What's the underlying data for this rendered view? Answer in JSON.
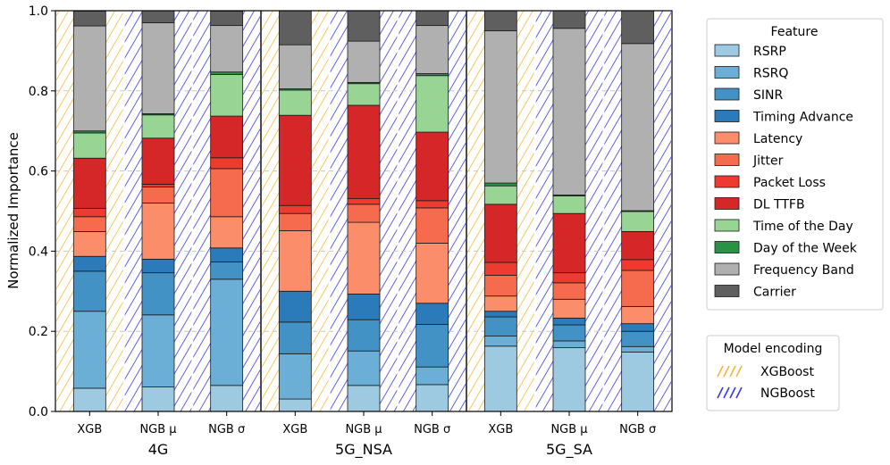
{
  "chart_data": {
    "type": "bar",
    "stacked": true,
    "ylabel": "Normalized Importance",
    "ylim": [
      0,
      1.0
    ],
    "yticks": [
      "0.0",
      "0.2",
      "0.4",
      "0.6",
      "0.8",
      "1.0"
    ],
    "grid": "horizontal dashed",
    "groups": [
      "4G",
      "5G_NSA",
      "5G_SA"
    ],
    "bar_labels": [
      "XGB",
      "NGB μ",
      "NGB σ"
    ],
    "features": [
      {
        "name": "RSRP",
        "color": "#9ecae1"
      },
      {
        "name": "RSRQ",
        "color": "#6baed6"
      },
      {
        "name": "SINR",
        "color": "#4292c6"
      },
      {
        "name": "Timing Advance",
        "color": "#2b7bba"
      },
      {
        "name": "Latency",
        "color": "#fc8d6a"
      },
      {
        "name": "Jitter",
        "color": "#f66a4d"
      },
      {
        "name": "Packet Loss",
        "color": "#ee3b2f"
      },
      {
        "name": "DL TTFB",
        "color": "#d62728"
      },
      {
        "name": "Time of the Day",
        "color": "#98d594"
      },
      {
        "name": "Day of the Week",
        "color": "#2a9245"
      },
      {
        "name": "Frequency Band",
        "color": "#b0b0b0"
      },
      {
        "name": "Carrier",
        "color": "#5f5f5f"
      }
    ],
    "bars": [
      {
        "group": "4G",
        "label": "XGB",
        "encoding": "XGBoost",
        "values": [
          0.058,
          0.192,
          0.1,
          0.037,
          0.062,
          0.037,
          0.021,
          0.125,
          0.063,
          0.005,
          0.262,
          0.037
        ]
      },
      {
        "group": "4G",
        "label": "NGB μ",
        "encoding": "NGBoost",
        "values": [
          0.061,
          0.18,
          0.105,
          0.034,
          0.14,
          0.04,
          0.007,
          0.115,
          0.058,
          0.003,
          0.227,
          0.03
        ]
      },
      {
        "group": "4G",
        "label": "NGB σ",
        "encoding": "NGBoost",
        "values": [
          0.065,
          0.265,
          0.043,
          0.035,
          0.078,
          0.12,
          0.027,
          0.104,
          0.104,
          0.006,
          0.116,
          0.036
        ]
      },
      {
        "group": "5G_NSA",
        "label": "XGB",
        "encoding": "XGBoost",
        "values": [
          0.031,
          0.113,
          0.079,
          0.077,
          0.151,
          0.043,
          0.02,
          0.225,
          0.063,
          0.003,
          0.11,
          0.085
        ]
      },
      {
        "group": "5G_NSA",
        "label": "NGB μ",
        "encoding": "NGBoost",
        "values": [
          0.065,
          0.086,
          0.078,
          0.064,
          0.179,
          0.045,
          0.014,
          0.233,
          0.054,
          0.003,
          0.103,
          0.076
        ]
      },
      {
        "group": "5G_NSA",
        "label": "NGB σ",
        "encoding": "NGBoost",
        "values": [
          0.067,
          0.044,
          0.106,
          0.053,
          0.15,
          0.088,
          0.018,
          0.171,
          0.141,
          0.005,
          0.12,
          0.037
        ]
      },
      {
        "group": "5G_SA",
        "label": "XGB",
        "encoding": "XGBoost",
        "values": [
          0.163,
          0.025,
          0.048,
          0.014,
          0.038,
          0.052,
          0.032,
          0.145,
          0.046,
          0.007,
          0.38,
          0.05
        ]
      },
      {
        "group": "5G_SA",
        "label": "NGB μ",
        "encoding": "NGBoost",
        "values": [
          0.159,
          0.017,
          0.04,
          0.017,
          0.047,
          0.041,
          0.025,
          0.148,
          0.044,
          0.002,
          0.416,
          0.044
        ]
      },
      {
        "group": "5G_SA",
        "label": "NGB σ",
        "encoding": "NGBoost",
        "values": [
          0.148,
          0.014,
          0.038,
          0.019,
          0.043,
          0.09,
          0.027,
          0.07,
          0.05,
          0.002,
          0.417,
          0.082
        ]
      }
    ],
    "legend": {
      "title": "Feature",
      "placement": "right"
    },
    "encoding_legend": {
      "title": "Model encoding",
      "entries": [
        {
          "name": "XGBoost",
          "color": "#f5b83d"
        },
        {
          "name": "NGBoost",
          "color": "#3a3ad6"
        }
      ]
    }
  }
}
